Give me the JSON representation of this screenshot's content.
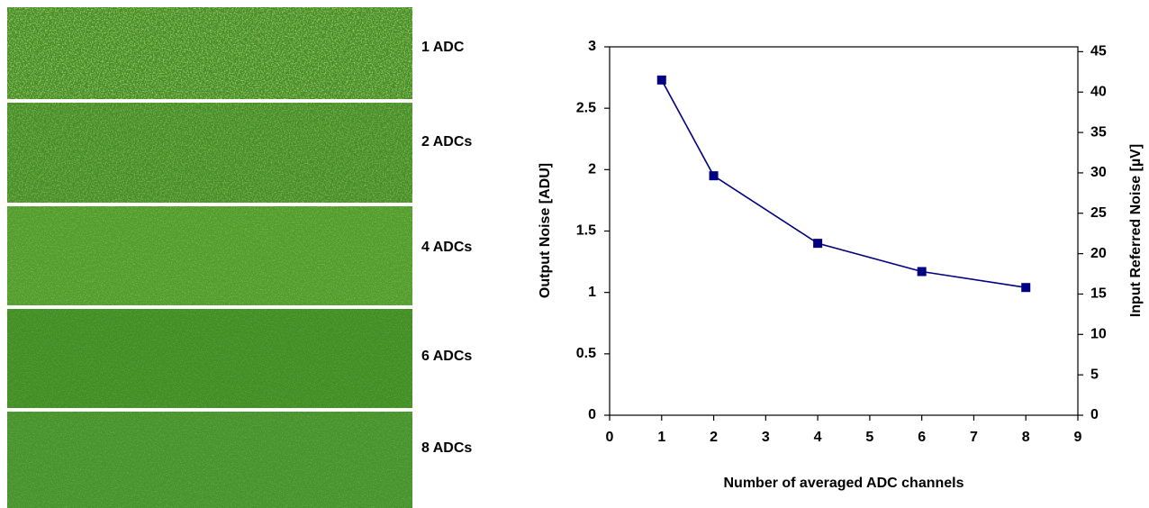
{
  "images": {
    "labels": [
      "1 ADC",
      "2 ADCs",
      "4 ADCs",
      "6 ADCs",
      "8 ADCs"
    ]
  },
  "chart_data": {
    "type": "line",
    "x": [
      1,
      2,
      4,
      6,
      8
    ],
    "series": [
      {
        "color": "#000080",
        "values": [
          2.73,
          1.95,
          1.4,
          1.17,
          1.04
        ]
      }
    ],
    "xlabel": "Number of averaged ADC channels",
    "ylabel": "Output Noise [ADU]",
    "y2label": "Input Referred Noise [µV]",
    "xlim": [
      0,
      9
    ],
    "xticks": [
      0,
      1,
      2,
      3,
      4,
      5,
      6,
      7,
      8,
      9
    ],
    "ylim": [
      0,
      3
    ],
    "yticks": [
      0,
      0.5,
      1,
      1.5,
      2,
      2.5,
      3
    ],
    "y2lim": [
      0,
      45.6
    ],
    "y2ticks": [
      0,
      5,
      10,
      15,
      20,
      25,
      30,
      35,
      40,
      45
    ],
    "grid": false
  }
}
